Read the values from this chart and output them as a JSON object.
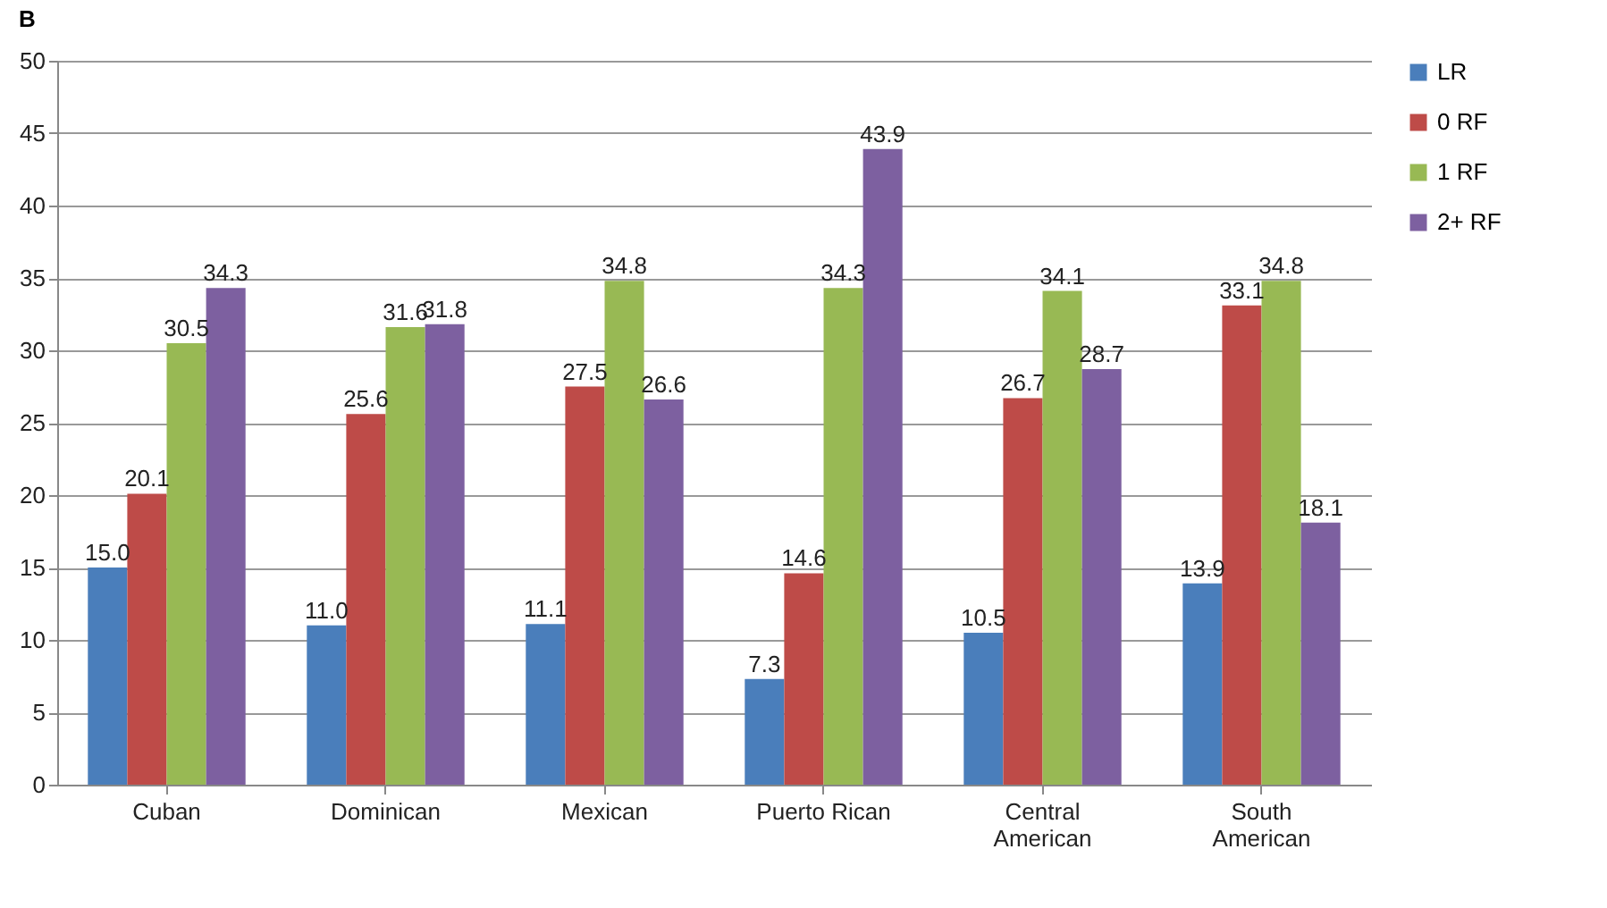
{
  "chart_data": {
    "type": "bar",
    "title": "B",
    "categories": [
      "Cuban",
      "Dominican",
      "Mexican",
      "Puerto Rican",
      "Central American",
      "South American"
    ],
    "series": [
      {
        "name": "LR",
        "color": "#4a7ebb",
        "values": [
          15.0,
          11.0,
          11.1,
          7.3,
          10.5,
          13.9
        ],
        "value_labels": [
          "15.0",
          "11.0",
          "11.1",
          "7.3",
          "10.5",
          "13.9"
        ]
      },
      {
        "name": "0 RF",
        "color": "#be4b48",
        "values": [
          20.1,
          25.6,
          27.5,
          14.6,
          26.7,
          33.1
        ],
        "value_labels": [
          "20.1",
          "25.6",
          "27.5",
          "14.6",
          "26.7",
          "33.1"
        ]
      },
      {
        "name": "1 RF",
        "color": "#98b954",
        "values": [
          30.5,
          31.6,
          34.8,
          34.3,
          34.1,
          34.8
        ],
        "value_labels": [
          "30.5",
          "31.6",
          "34.8",
          "34.3",
          "34.1",
          "34.8"
        ]
      },
      {
        "name": "2+ RF",
        "color": "#7d60a0",
        "values": [
          34.3,
          31.8,
          26.6,
          43.9,
          28.7,
          18.1
        ],
        "value_labels": [
          "34.3",
          "31.8",
          "26.6",
          "43.9",
          "28.7",
          "18.1"
        ]
      }
    ],
    "ylim": [
      0,
      50
    ],
    "yticks": [
      0,
      5,
      10,
      15,
      20,
      25,
      30,
      35,
      40,
      45,
      50
    ],
    "grid": "y",
    "legend": "right"
  }
}
